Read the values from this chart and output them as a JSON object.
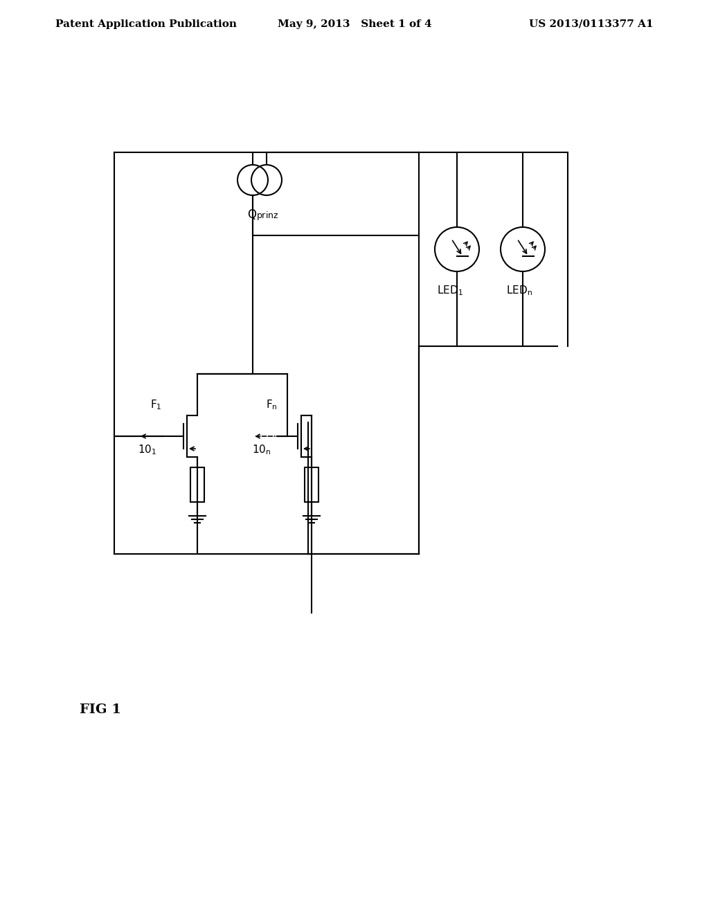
{
  "bg_color": "#ffffff",
  "line_color": "#000000",
  "header_left": "Patent Application Publication",
  "header_mid": "May 9, 2013   Sheet 1 of 4",
  "header_right": "US 2013/0113377 A1",
  "fig_label": "FIG 1",
  "title_font": 11,
  "fig_label_font": 14
}
